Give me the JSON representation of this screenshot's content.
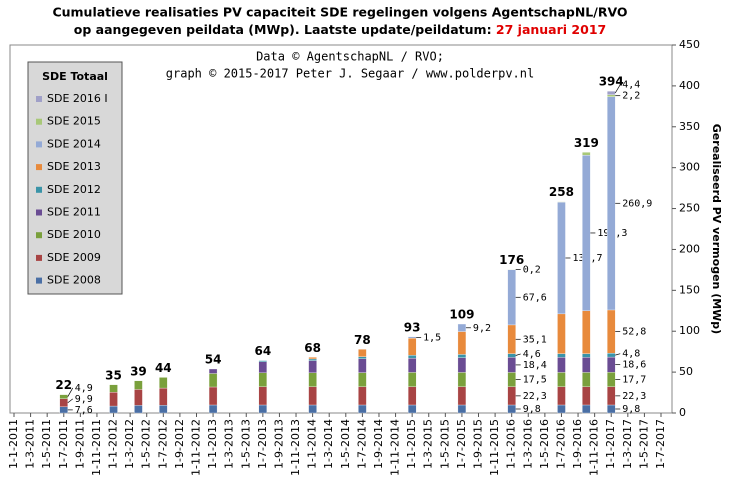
{
  "chart_data": {
    "type": "bar",
    "stacked": true,
    "title": [
      "Cumulatieve realisaties PV capaciteit SDE regelingen volgens AgentschapNL/RVO",
      "op aangegeven peildata (MWp). Laatste update/peildatum: "
    ],
    "title_date": "27 januari 2017",
    "title_date_color": "#e00000",
    "subtitle": [
      "Data © AgentschapNL / RVO;",
      "graph © 2015-2017 Peter J. Segaar / www.polderpv.nl"
    ],
    "y_label": "Gerealiseerd PV vermogen (MWp)",
    "legend": {
      "title": "SDE Totaal",
      "position": "upper left"
    },
    "xlim": [
      0,
      78
    ],
    "xticks": [
      {
        "value": 0,
        "label": "1-1-2011"
      },
      {
        "value": 2,
        "label": "1-3-2011"
      },
      {
        "value": 4,
        "label": "1-5-2011"
      },
      {
        "value": 6,
        "label": "1-7-2011"
      },
      {
        "value": 8,
        "label": "1-9-2011"
      },
      {
        "value": 10,
        "label": "1-11-2011"
      },
      {
        "value": 12,
        "label": "1-1-2012"
      },
      {
        "value": 14,
        "label": "1-3-2012"
      },
      {
        "value": 16,
        "label": "1-5-2012"
      },
      {
        "value": 18,
        "label": "1-7-2012"
      },
      {
        "value": 20,
        "label": "1-9-2012"
      },
      {
        "value": 22,
        "label": "1-11-2012"
      },
      {
        "value": 24,
        "label": "1-1-2013"
      },
      {
        "value": 26,
        "label": "1-3-2013"
      },
      {
        "value": 28,
        "label": "1-5-2013"
      },
      {
        "value": 30,
        "label": "1-7-2013"
      },
      {
        "value": 32,
        "label": "1-9-2013"
      },
      {
        "value": 34,
        "label": "1-11-2013"
      },
      {
        "value": 36,
        "label": "1-1-2014"
      },
      {
        "value": 38,
        "label": "1-3-2014"
      },
      {
        "value": 40,
        "label": "1-5-2014"
      },
      {
        "value": 42,
        "label": "1-7-2014"
      },
      {
        "value": 44,
        "label": "1-9-2014"
      },
      {
        "value": 46,
        "label": "1-11-2014"
      },
      {
        "value": 48,
        "label": "1-1-2015"
      },
      {
        "value": 50,
        "label": "1-3-2015"
      },
      {
        "value": 52,
        "label": "1-5-2015"
      },
      {
        "value": 54,
        "label": "1-7-2015"
      },
      {
        "value": 56,
        "label": "1-9-2015"
      },
      {
        "value": 58,
        "label": "1-11-2015"
      },
      {
        "value": 60,
        "label": "1-1-2016"
      },
      {
        "value": 62,
        "label": "1-3-2016"
      },
      {
        "value": 64,
        "label": "1-5-2016"
      },
      {
        "value": 66,
        "label": "1-7-2016"
      },
      {
        "value": 68,
        "label": "1-9-2016"
      },
      {
        "value": 70,
        "label": "1-11-2016"
      },
      {
        "value": 72,
        "label": "1-1-2017"
      },
      {
        "value": 74,
        "label": "1-3-2017"
      },
      {
        "value": 76,
        "label": "1-5-2017"
      },
      {
        "value": 78,
        "label": "1-7-2017"
      }
    ],
    "ylim": [
      0,
      450
    ],
    "yticks": [
      0,
      50,
      100,
      150,
      200,
      250,
      300,
      350,
      400,
      450
    ],
    "x": [
      6,
      12,
      15,
      18,
      24,
      30,
      36,
      42,
      48,
      54,
      60,
      66,
      69,
      72
    ],
    "totals": [
      22,
      35,
      39,
      44,
      54,
      64,
      68,
      78,
      93,
      109,
      176,
      258,
      319,
      394
    ],
    "series": [
      {
        "name": "SDE 2008",
        "color": "#4a6fa5",
        "values": [
          7.6,
          8.5,
          9.3,
          9.5,
          9.8,
          9.8,
          9.8,
          9.8,
          9.8,
          9.8,
          9.8,
          9.8,
          9.8,
          9.8
        ],
        "value_labels": [
          "7,6",
          null,
          null,
          null,
          null,
          null,
          null,
          null,
          null,
          null,
          "9,8",
          null,
          null,
          "9,8"
        ]
      },
      {
        "name": "SDE 2009",
        "color": "#a84444",
        "values": [
          9.9,
          17,
          19.5,
          21,
          22,
          22.3,
          22.3,
          22.3,
          22.3,
          22.3,
          22.3,
          22.3,
          22.3,
          22.3
        ],
        "value_labels": [
          "9,9",
          null,
          null,
          null,
          null,
          null,
          null,
          null,
          null,
          null,
          "22,3",
          null,
          null,
          "22,3"
        ]
      },
      {
        "name": "SDE 2010",
        "color": "#7aa03c",
        "values": [
          4.9,
          9,
          10.5,
          13,
          16.5,
          17,
          17,
          17.3,
          17.5,
          17.5,
          17.5,
          17.5,
          17.5,
          17.7
        ],
        "value_labels": [
          "4,9",
          null,
          null,
          null,
          null,
          null,
          null,
          null,
          null,
          null,
          "17,5",
          null,
          null,
          "17,7"
        ]
      },
      {
        "name": "SDE 2011",
        "color": "#6a4c93",
        "values": [
          0,
          0,
          0,
          0,
          5.5,
          13.5,
          15,
          17,
          17.5,
          18,
          18.4,
          18.4,
          18.4,
          18.6
        ],
        "value_labels": [
          null,
          null,
          null,
          null,
          null,
          null,
          null,
          null,
          null,
          null,
          "18,4",
          null,
          null,
          "18,6"
        ]
      },
      {
        "name": "SDE 2012",
        "color": "#3a94a8",
        "values": [
          0,
          0,
          0,
          0,
          0,
          1.5,
          2,
          2.5,
          3.5,
          4,
          4.6,
          4.6,
          4.6,
          4.8
        ],
        "value_labels": [
          null,
          null,
          null,
          null,
          null,
          null,
          null,
          null,
          null,
          null,
          "4,6",
          null,
          null,
          "4,8"
        ]
      },
      {
        "name": "SDE 2013",
        "color": "#e88a3c",
        "values": [
          0,
          0,
          0,
          0,
          0,
          0,
          2,
          9,
          21,
          28,
          35.1,
          48.6,
          52.4,
          52.8
        ],
        "value_labels": [
          null,
          null,
          null,
          null,
          null,
          null,
          null,
          null,
          null,
          null,
          "35,1",
          null,
          null,
          "52,8"
        ]
      },
      {
        "name": "SDE 2014",
        "color": "#94aad6",
        "label_color": "#0000cc",
        "values": [
          0,
          0,
          0,
          0,
          0,
          0,
          0,
          0,
          1.5,
          9.2,
          67.6,
          136.7,
          190.3,
          260.9
        ],
        "value_labels": [
          null,
          null,
          null,
          null,
          null,
          null,
          null,
          null,
          "1,5",
          "9,2",
          "67,6",
          "136,7",
          "190,3",
          "260,9"
        ]
      },
      {
        "name": "SDE 2015",
        "color": "#a8c878",
        "values": [
          0,
          0,
          0,
          0,
          0,
          0,
          0,
          0,
          0,
          0,
          0.2,
          0.5,
          3.5,
          2.2
        ],
        "value_labels": [
          null,
          null,
          null,
          null,
          null,
          null,
          null,
          null,
          null,
          null,
          "0,2",
          null,
          null,
          "2,2"
        ]
      },
      {
        "name": "SDE 2016 I",
        "color": "#a0a0c8",
        "values": [
          0,
          0,
          0,
          0,
          0,
          0,
          0,
          0,
          0,
          0,
          0,
          0,
          0,
          4.4
        ],
        "value_labels": [
          null,
          null,
          null,
          null,
          null,
          null,
          null,
          null,
          null,
          null,
          null,
          null,
          null,
          "4,4"
        ]
      }
    ]
  }
}
